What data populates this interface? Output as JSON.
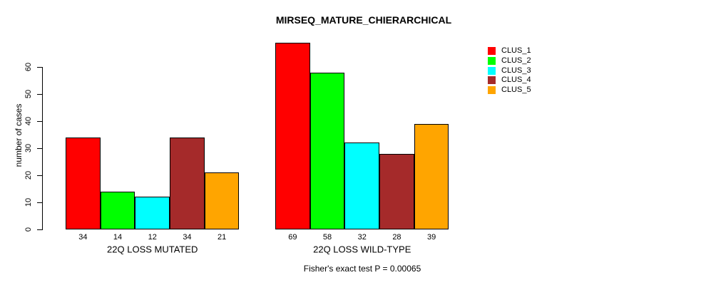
{
  "title": "MIRSEQ_MATURE_CHIERARCHICAL",
  "y_axis": {
    "label": "number of cases",
    "tick_labels": [
      "0",
      "10",
      "20",
      "30",
      "40",
      "50",
      "60"
    ]
  },
  "caption": "Fisher's exact test P = 0.00065",
  "legend": {
    "items": [
      {
        "label": "CLUS_1",
        "color": "#ff0000"
      },
      {
        "label": "CLUS_2",
        "color": "#00ff00"
      },
      {
        "label": "CLUS_3",
        "color": "#00ffff"
      },
      {
        "label": "CLUS_4",
        "color": "#a52a2a"
      },
      {
        "label": "CLUS_5",
        "color": "#ffa500"
      }
    ]
  },
  "chart_data": {
    "type": "bar",
    "title": "MIRSEQ_MATURE_CHIERARCHICAL",
    "xlabel": "",
    "ylabel": "number of cases",
    "ylim": [
      0,
      60
    ],
    "yticks": [
      0,
      10,
      20,
      30,
      40,
      50,
      60
    ],
    "grid": false,
    "legend_position": "top-right",
    "bar_value_labels": true,
    "categories": [
      "22Q LOSS MUTATED",
      "22Q LOSS WILD-TYPE"
    ],
    "series": [
      {
        "name": "CLUS_1",
        "color": "#ff0000",
        "values": [
          34,
          69
        ]
      },
      {
        "name": "CLUS_2",
        "color": "#00ff00",
        "values": [
          14,
          58
        ]
      },
      {
        "name": "CLUS_3",
        "color": "#00ffff",
        "values": [
          12,
          32
        ]
      },
      {
        "name": "CLUS_4",
        "color": "#a52a2a",
        "values": [
          34,
          28
        ]
      },
      {
        "name": "CLUS_5",
        "color": "#ffa500",
        "values": [
          21,
          39
        ]
      }
    ],
    "annotation": "Fisher's exact test P = 0.00065"
  }
}
